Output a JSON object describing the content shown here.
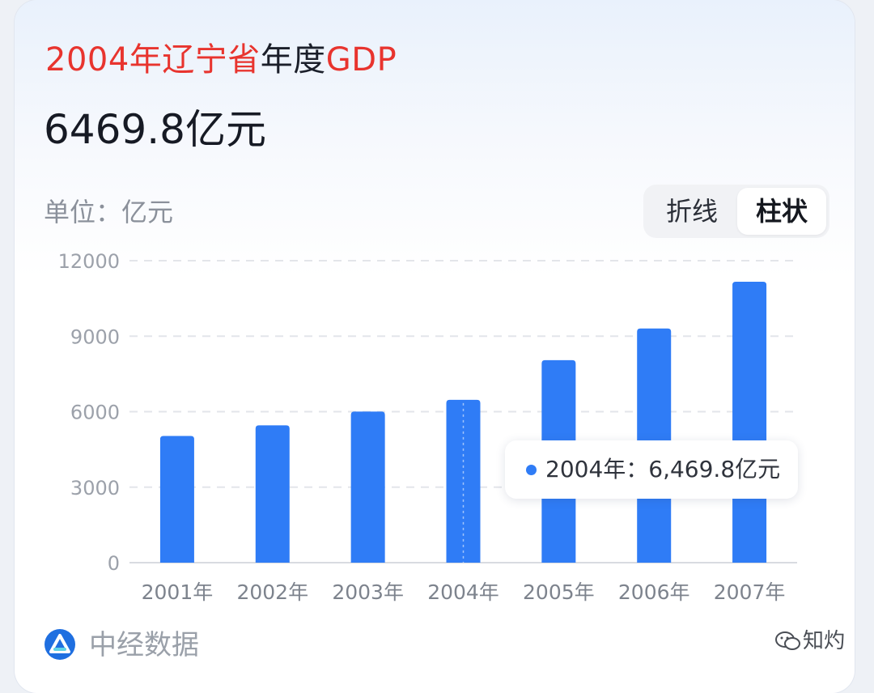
{
  "header": {
    "title_highlight": "2004年辽宁省",
    "title_rest": "年度",
    "title_suffix": "GDP",
    "value": "6469.8亿元",
    "unit_label": "单位：亿元"
  },
  "toggle": {
    "options": [
      "折线",
      "柱状"
    ],
    "selected": "柱状"
  },
  "colors": {
    "bar": "#2f7cf6",
    "title_red": "#e8342e",
    "grid": "#e3e5ea",
    "tick_text": "#9ca1aa"
  },
  "tooltip": {
    "text": "2004年：6,469.8亿元"
  },
  "brand": {
    "name": "中经数据",
    "icon": "zhongjing-logo-icon"
  },
  "watermark": {
    "text": "知灼",
    "icon": "wechat-icon"
  },
  "chart_data": {
    "type": "bar",
    "categories": [
      "2001年",
      "2002年",
      "2003年",
      "2004年",
      "2005年",
      "2006年",
      "2007年"
    ],
    "values": [
      5033,
      5458,
      6002.5,
      6469.8,
      8047.3,
      9304.5,
      11164.3
    ],
    "ylim": [
      0,
      12000
    ],
    "yticks": [
      0,
      3000,
      6000,
      9000,
      12000
    ],
    "highlighted_category": "2004年",
    "grid": true,
    "legend": "none"
  }
}
